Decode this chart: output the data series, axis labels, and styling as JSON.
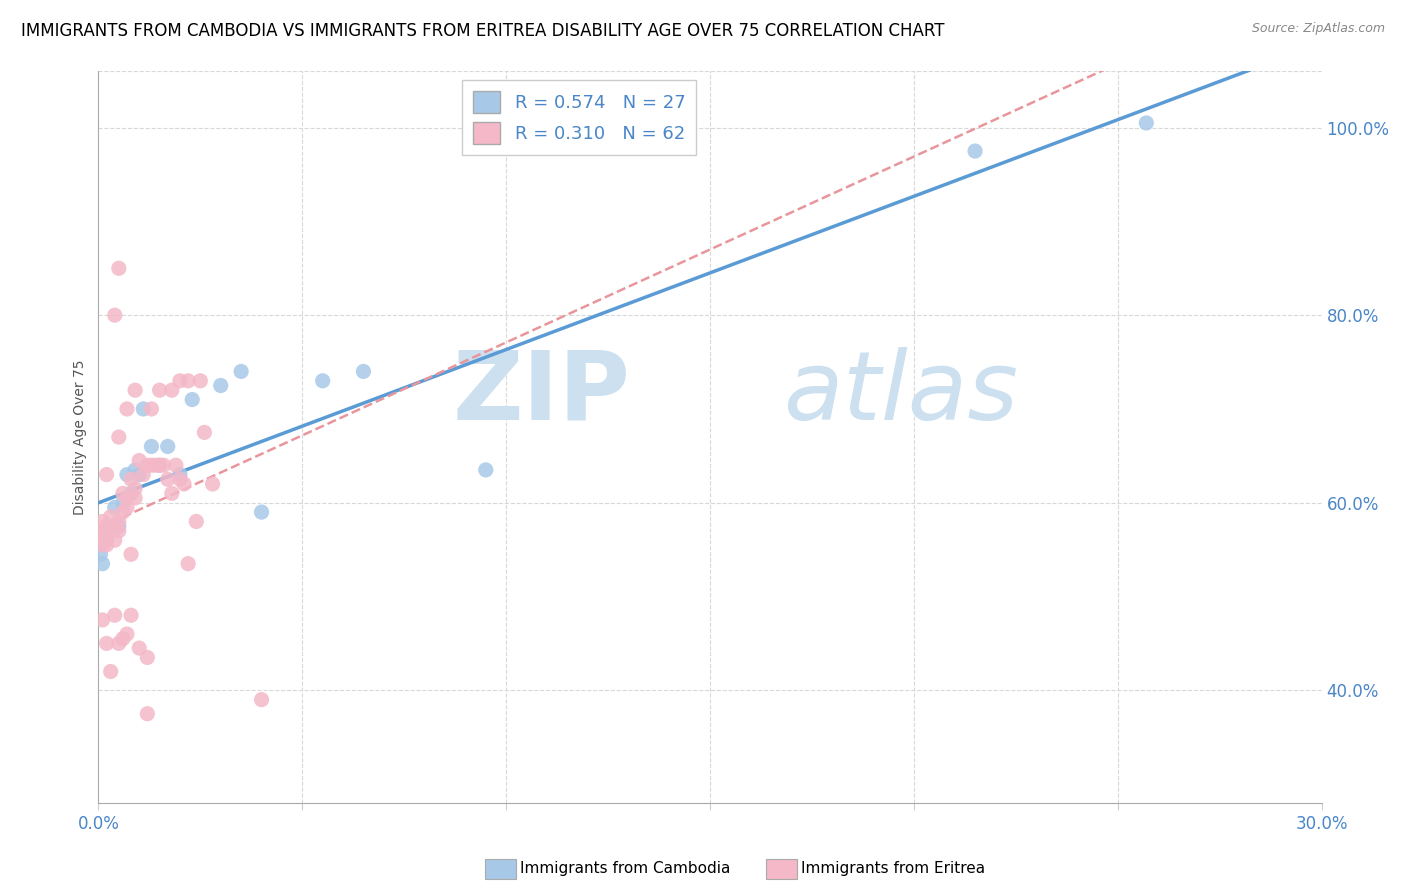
{
  "title": "IMMIGRANTS FROM CAMBODIA VS IMMIGRANTS FROM ERITREA DISABILITY AGE OVER 75 CORRELATION CHART",
  "source": "Source: ZipAtlas.com",
  "ylabel": "Disability Age Over 75",
  "color_cambodia": "#a8c8e8",
  "color_eritrea": "#f4b8c8",
  "color_line_cambodia": "#5b9bd5",
  "color_line_eritrea": "#e8969c",
  "watermark_zip_color": "#cde0f0",
  "watermark_atlas_color": "#cde0f0",
  "xlim": [
    0.0,
    0.3
  ],
  "ylim": [
    0.28,
    1.06
  ],
  "yticks": [
    0.4,
    0.6,
    0.8,
    1.0
  ],
  "ytick_labels": [
    "40.0%",
    "60.0%",
    "80.0%",
    "100.0%"
  ],
  "xtick_left": "0.0%",
  "xtick_right": "30.0%",
  "grid_color": "#d8d8d8",
  "background_color": "#ffffff",
  "title_fontsize": 12,
  "tick_fontsize": 12,
  "legend_fontsize": 13,
  "cambodia_x": [
    0.0005,
    0.001,
    0.001,
    0.002,
    0.002,
    0.003,
    0.004,
    0.005,
    0.006,
    0.007,
    0.008,
    0.009,
    0.01,
    0.011,
    0.013,
    0.015,
    0.017,
    0.02,
    0.023,
    0.03,
    0.035,
    0.04,
    0.055,
    0.065,
    0.095,
    0.215,
    0.257
  ],
  "cambodia_y": [
    0.545,
    0.535,
    0.555,
    0.56,
    0.565,
    0.575,
    0.595,
    0.575,
    0.6,
    0.63,
    0.61,
    0.635,
    0.63,
    0.7,
    0.66,
    0.64,
    0.66,
    0.63,
    0.71,
    0.725,
    0.74,
    0.59,
    0.73,
    0.74,
    0.635,
    0.975,
    1.005
  ],
  "eritrea_x": [
    0.0005,
    0.001,
    0.001,
    0.001,
    0.0015,
    0.002,
    0.002,
    0.002,
    0.003,
    0.003,
    0.004,
    0.004,
    0.005,
    0.005,
    0.006,
    0.006,
    0.007,
    0.007,
    0.008,
    0.009,
    0.009,
    0.01,
    0.011,
    0.012,
    0.013,
    0.014,
    0.015,
    0.016,
    0.017,
    0.018,
    0.019,
    0.02,
    0.021,
    0.022,
    0.024,
    0.026,
    0.028,
    0.001,
    0.002,
    0.003,
    0.004,
    0.005,
    0.006,
    0.007,
    0.008,
    0.01,
    0.012,
    0.005,
    0.007,
    0.009,
    0.013,
    0.015,
    0.018,
    0.02,
    0.022,
    0.025,
    0.002,
    0.004,
    0.005,
    0.008,
    0.012,
    0.04
  ],
  "eritrea_y": [
    0.56,
    0.555,
    0.57,
    0.58,
    0.56,
    0.555,
    0.565,
    0.575,
    0.57,
    0.585,
    0.56,
    0.575,
    0.57,
    0.58,
    0.59,
    0.61,
    0.595,
    0.605,
    0.625,
    0.615,
    0.605,
    0.645,
    0.63,
    0.64,
    0.64,
    0.64,
    0.64,
    0.64,
    0.625,
    0.61,
    0.64,
    0.625,
    0.62,
    0.535,
    0.58,
    0.675,
    0.62,
    0.475,
    0.45,
    0.42,
    0.48,
    0.45,
    0.455,
    0.46,
    0.48,
    0.445,
    0.435,
    0.67,
    0.7,
    0.72,
    0.7,
    0.72,
    0.72,
    0.73,
    0.73,
    0.73,
    0.63,
    0.8,
    0.85,
    0.545,
    0.375,
    0.39
  ]
}
